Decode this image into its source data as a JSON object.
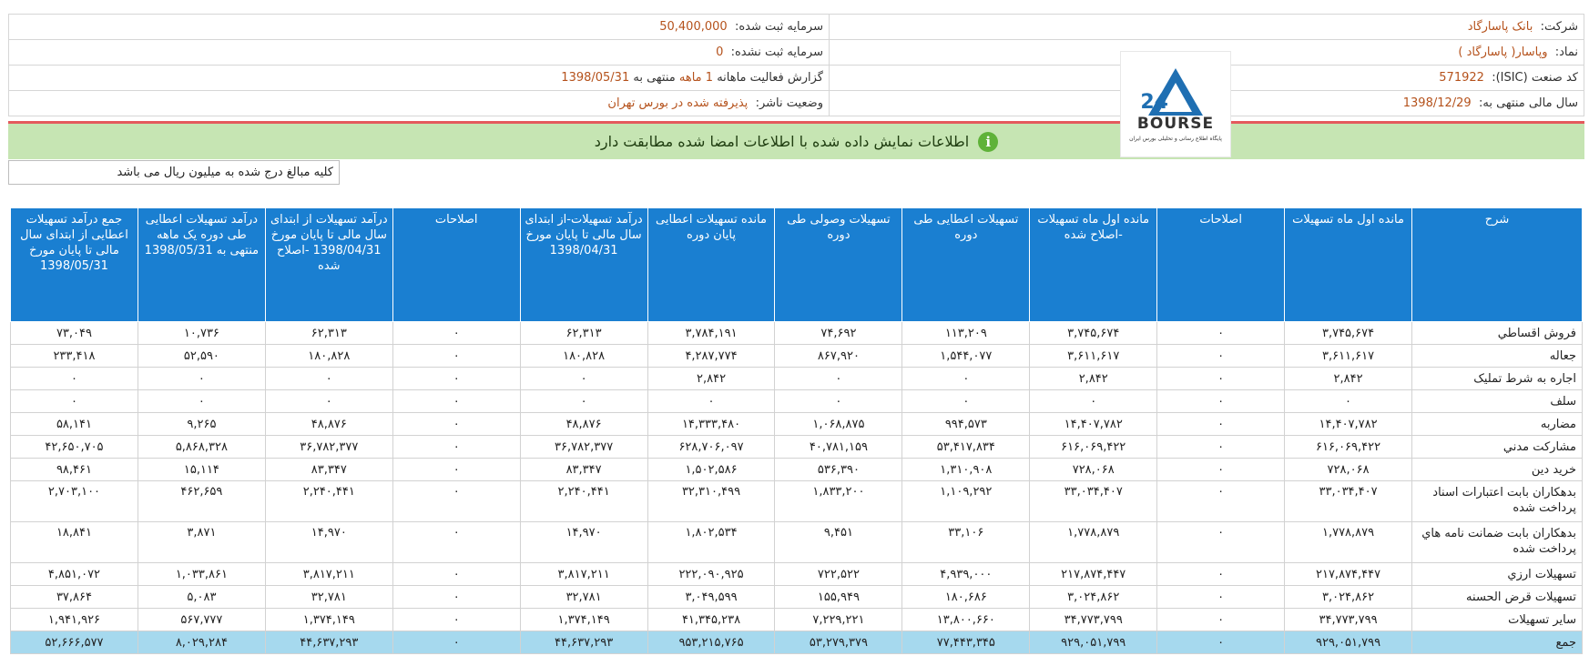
{
  "header": {
    "company_label": "شرکت:",
    "company_value": "بانک پاسارگاد",
    "symbol_label": "نماد:",
    "symbol_value": "وپاسار( پاسارگاد )",
    "isic_label": "کد صنعت (ISIC):",
    "isic_value": "571922",
    "fiscal_label": "سال مالی منتهی به:",
    "fiscal_value": "1398/12/29",
    "capital_label": "سرمایه ثبت شده:",
    "capital_value": "50,400,000",
    "unreg_capital_label": "سرمایه ثبت نشده:",
    "unreg_capital_value": "0",
    "report_label_prefix": "گزارش فعالیت ماهانه",
    "report_period": "1 ماهه",
    "report_label_mid": "منتهی به",
    "report_date": "1398/05/31",
    "status_label": "وضعیت ناشر:",
    "status_value": "پذیرفته شده در بورس تهران"
  },
  "logo": {
    "text": "BOURSE",
    "subtitle": "پایگاه اطلاع رسانی و تحلیلی بورس ایران",
    "color_blue": "#1f6fb2",
    "color_dark": "#333333"
  },
  "notice": {
    "icon": "info-icon",
    "text": "اطلاعات نمایش داده شده با اطلاعات امضا شده مطابقت دارد"
  },
  "amounts_note": "کلیه مبالغ درج شده به میلیون ریال می باشد",
  "table": {
    "headers": [
      "شرح",
      "مانده اول ماه تسهیلات",
      "اصلاحات",
      "مانده اول ماه تسهیلات -اصلاح شده",
      "تسهیلات اعطایی طی دوره",
      "تسهیلات وصولی طی دوره",
      "مانده تسهیلات اعطایی پایان دوره",
      "درآمد تسهیلات-از ابتدای سال مالی تا پایان مورخ 1398/04/31",
      "اصلاحات",
      "درآمد تسهیلات از ابتدای سال مالی تا پایان مورخ 1398/04/31 -اصلاح شده",
      "درآمد تسهیلات اعطایی طی دوره یک ماهه منتهی به 1398/05/31",
      "جمع درآمد تسهیلات اعطایی از ابتدای سال مالی تا پایان مورخ 1398/05/31"
    ],
    "rows": [
      [
        "فروش اقساطي",
        "۳,۷۴۵,۶۷۴",
        "۰",
        "۳,۷۴۵,۶۷۴",
        "۱۱۳,۲۰۹",
        "۷۴,۶۹۲",
        "۳,۷۸۴,۱۹۱",
        "۶۲,۳۱۳",
        "۰",
        "۶۲,۳۱۳",
        "۱۰,۷۳۶",
        "۷۳,۰۴۹"
      ],
      [
        "جعاله",
        "۳,۶۱۱,۶۱۷",
        "۰",
        "۳,۶۱۱,۶۱۷",
        "۱,۵۴۴,۰۷۷",
        "۸۶۷,۹۲۰",
        "۴,۲۸۷,۷۷۴",
        "۱۸۰,۸۲۸",
        "۰",
        "۱۸۰,۸۲۸",
        "۵۲,۵۹۰",
        "۲۳۳,۴۱۸"
      ],
      [
        "اجاره به شرط تمليک",
        "۲,۸۴۲",
        "۰",
        "۲,۸۴۲",
        "۰",
        "۰",
        "۲,۸۴۲",
        "۰",
        "۰",
        "۰",
        "۰",
        "۰"
      ],
      [
        "سلف",
        "۰",
        "۰",
        "۰",
        "۰",
        "۰",
        "۰",
        "۰",
        "۰",
        "۰",
        "۰",
        "۰"
      ],
      [
        "مضاربه",
        "۱۴,۴۰۷,۷۸۲",
        "۰",
        "۱۴,۴۰۷,۷۸۲",
        "۹۹۴,۵۷۳",
        "۱,۰۶۸,۸۷۵",
        "۱۴,۳۳۳,۴۸۰",
        "۴۸,۸۷۶",
        "۰",
        "۴۸,۸۷۶",
        "۹,۲۶۵",
        "۵۸,۱۴۱"
      ],
      [
        "مشاركت مدني",
        "۶۱۶,۰۶۹,۴۲۲",
        "۰",
        "۶۱۶,۰۶۹,۴۲۲",
        "۵۳,۴۱۷,۸۳۴",
        "۴۰,۷۸۱,۱۵۹",
        "۶۲۸,۷۰۶,۰۹۷",
        "۳۶,۷۸۲,۳۷۷",
        "۰",
        "۳۶,۷۸۲,۳۷۷",
        "۵,۸۶۸,۳۲۸",
        "۴۲,۶۵۰,۷۰۵"
      ],
      [
        "خريد دين",
        "۷۲۸,۰۶۸",
        "۰",
        "۷۲۸,۰۶۸",
        "۱,۳۱۰,۹۰۸",
        "۵۳۶,۳۹۰",
        "۱,۵۰۲,۵۸۶",
        "۸۳,۳۴۷",
        "۰",
        "۸۳,۳۴۷",
        "۱۵,۱۱۴",
        "۹۸,۴۶۱"
      ],
      [
        "بدهكاران بابت اعتبارات اسناد پرداخت شده",
        "۳۳,۰۳۴,۴۰۷",
        "۰",
        "۳۳,۰۳۴,۴۰۷",
        "۱,۱۰۹,۲۹۲",
        "۱,۸۳۳,۲۰۰",
        "۳۲,۳۱۰,۴۹۹",
        "۲,۲۴۰,۴۴۱",
        "۰",
        "۲,۲۴۰,۴۴۱",
        "۴۶۲,۶۵۹",
        "۲,۷۰۳,۱۰۰"
      ],
      [
        "بدهكاران بابت ضمانت نامه هاي پرداخت شده",
        "۱,۷۷۸,۸۷۹",
        "۰",
        "۱,۷۷۸,۸۷۹",
        "۳۳,۱۰۶",
        "۹,۴۵۱",
        "۱,۸۰۲,۵۳۴",
        "۱۴,۹۷۰",
        "۰",
        "۱۴,۹۷۰",
        "۳,۸۷۱",
        "۱۸,۸۴۱"
      ],
      [
        "تسهيلات ارزي",
        "۲۱۷,۸۷۴,۴۴۷",
        "۰",
        "۲۱۷,۸۷۴,۴۴۷",
        "۴,۹۳۹,۰۰۰",
        "۷۲۲,۵۲۲",
        "۲۲۲,۰۹۰,۹۲۵",
        "۳,۸۱۷,۲۱۱",
        "۰",
        "۳,۸۱۷,۲۱۱",
        "۱,۰۳۳,۸۶۱",
        "۴,۸۵۱,۰۷۲"
      ],
      [
        "تسهيلات قرض الحسنه",
        "۳,۰۲۴,۸۶۲",
        "۰",
        "۳,۰۲۴,۸۶۲",
        "۱۸۰,۶۸۶",
        "۱۵۵,۹۴۹",
        "۳,۰۴۹,۵۹۹",
        "۳۲,۷۸۱",
        "۰",
        "۳۲,۷۸۱",
        "۵,۰۸۳",
        "۳۷,۸۶۴"
      ],
      [
        "ساير تسهيلات",
        "۳۴,۷۷۳,۷۹۹",
        "۰",
        "۳۴,۷۷۳,۷۹۹",
        "۱۳,۸۰۰,۶۶۰",
        "۷,۲۲۹,۲۲۱",
        "۴۱,۳۴۵,۲۳۸",
        "۱,۳۷۴,۱۴۹",
        "۰",
        "۱,۳۷۴,۱۴۹",
        "۵۶۷,۷۷۷",
        "۱,۹۴۱,۹۲۶"
      ],
      [
        "جمع",
        "۹۲۹,۰۵۱,۷۹۹",
        "۰",
        "۹۲۹,۰۵۱,۷۹۹",
        "۷۷,۴۴۳,۳۴۵",
        "۵۳,۲۷۹,۳۷۹",
        "۹۵۳,۲۱۵,۷۶۵",
        "۴۴,۶۳۷,۲۹۳",
        "۰",
        "۴۴,۶۳۷,۲۹۳",
        "۸,۰۲۹,۲۸۴",
        "۵۲,۶۶۶,۵۷۷"
      ]
    ]
  }
}
